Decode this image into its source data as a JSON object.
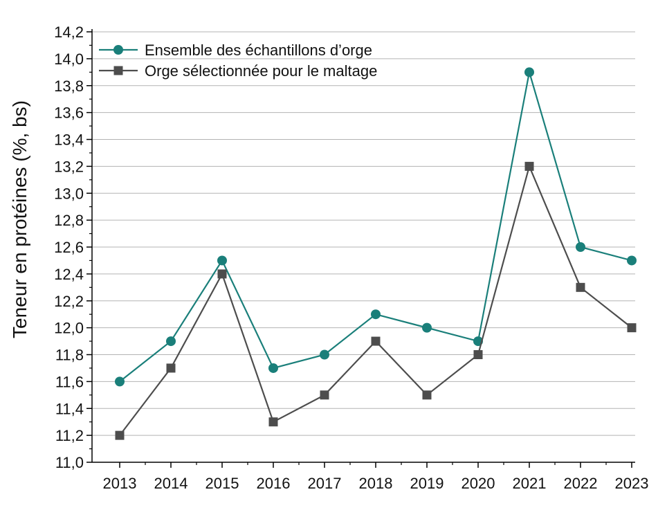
{
  "chart_data": {
    "type": "line",
    "x": [
      "2013",
      "2014",
      "2015",
      "2016",
      "2017",
      "2018",
      "2019",
      "2020",
      "2021",
      "2022",
      "2023"
    ],
    "series": [
      {
        "name": "Ensemble des échantillons d’orge",
        "values": [
          11.6,
          11.9,
          12.5,
          11.7,
          11.8,
          12.1,
          12.0,
          11.9,
          13.9,
          12.6,
          12.5
        ],
        "color": "#1a7f7a",
        "marker": "circle"
      },
      {
        "name": "Orge sélectionnée pour le maltage",
        "values": [
          11.2,
          11.7,
          12.4,
          11.3,
          11.5,
          11.9,
          11.5,
          11.8,
          13.2,
          12.3,
          12.0
        ],
        "color": "#4d4d4d",
        "marker": "square"
      }
    ],
    "ylabel": "Teneur en protéines (%, bs)",
    "xlabel": "",
    "ylim": [
      11.0,
      14.2
    ],
    "yticks": [
      "11,0",
      "11,2",
      "11,4",
      "11,6",
      "11,8",
      "12,0",
      "12,2",
      "12,4",
      "12,6",
      "12,8",
      "13,0",
      "13,2",
      "13,4",
      "13,6",
      "13,8",
      "14,0",
      "14,2"
    ],
    "grid": "horizontal",
    "legend_position": "top-left"
  }
}
